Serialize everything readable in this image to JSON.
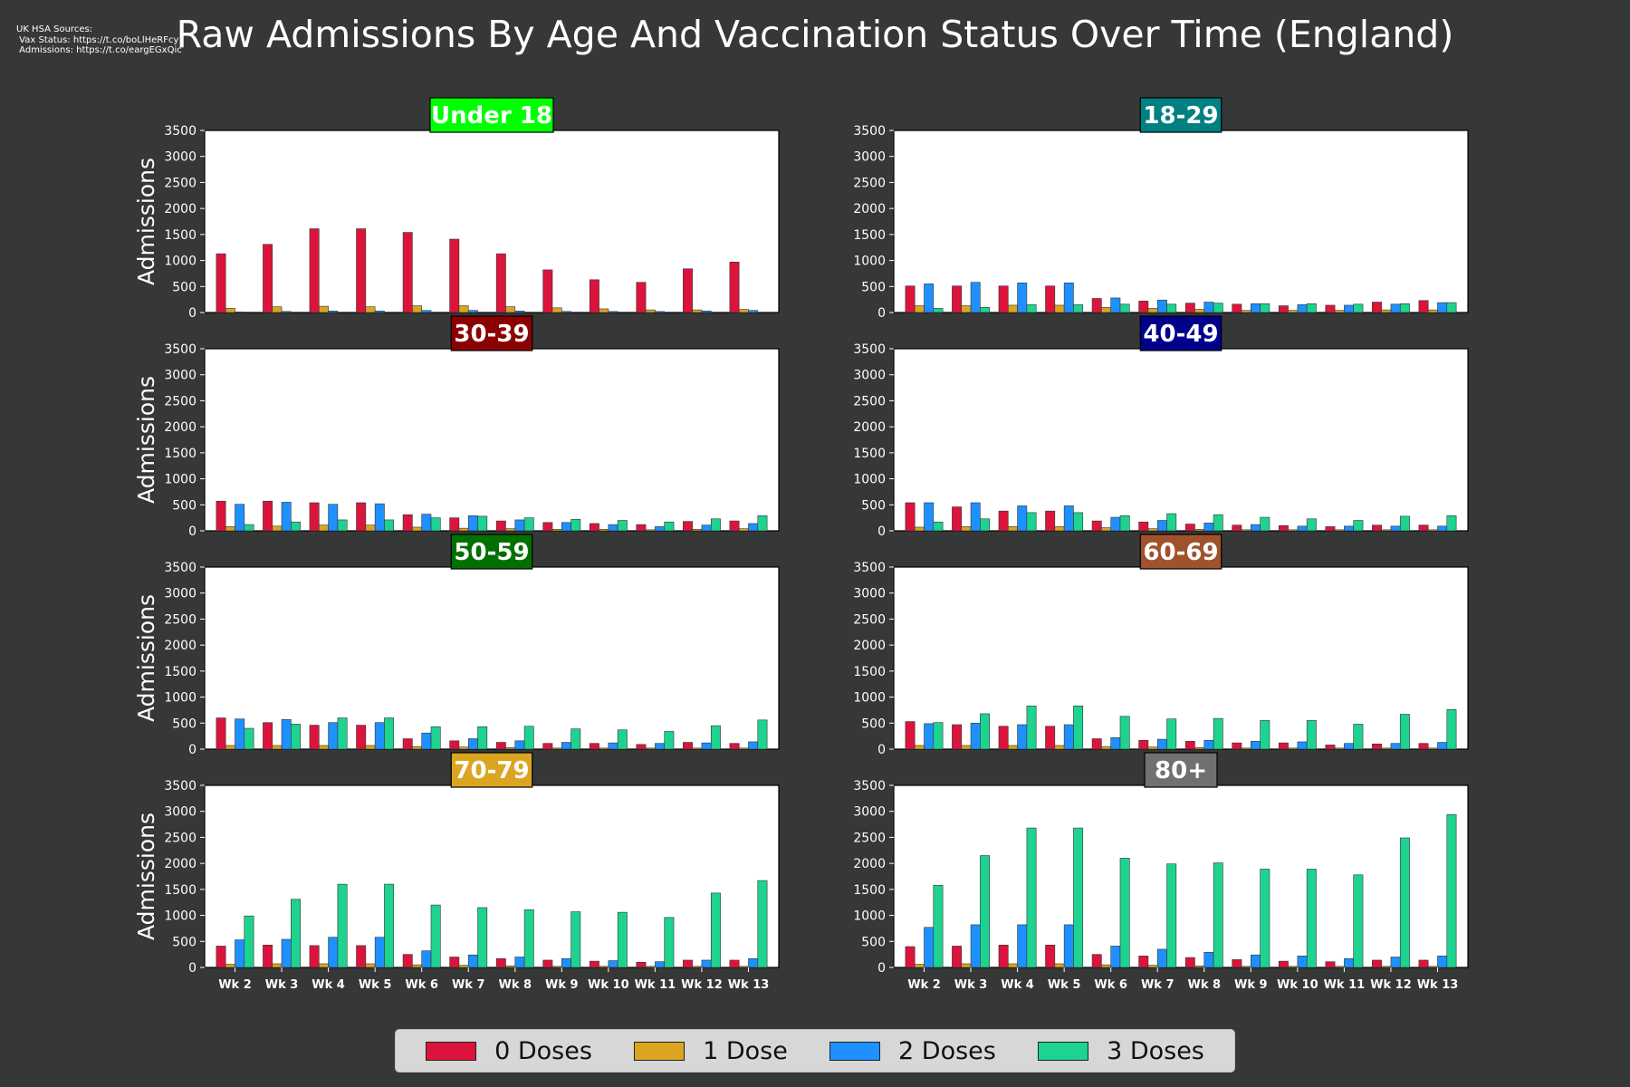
{
  "page": {
    "sources_text": "UK HSA Sources:\n Vax Status: https://t.co/boLlHeRFcy\n Admissions: https://t.co/eargEGxQic",
    "title": "Raw Admissions By Age And Vaccination Status Over Time (England)"
  },
  "colors": {
    "background": "#363737",
    "dose0": "#dc143c",
    "dose1": "#daa520",
    "dose2": "#1e90ff",
    "dose3": "#1ed38f"
  },
  "chart_data": {
    "type": "bar",
    "ylabel": "Admissions",
    "ylim": [
      0,
      3500
    ],
    "yticks": [
      0,
      500,
      1000,
      1500,
      2000,
      2500,
      3000,
      3500
    ],
    "categories": [
      "Wk 2",
      "Wk 3",
      "Wk 4",
      "Wk 5",
      "Wk 6",
      "Wk 7",
      "Wk 8",
      "Wk 9",
      "Wk 10",
      "Wk 11",
      "Wk 12",
      "Wk 13"
    ],
    "series_names": [
      "0 Doses",
      "1 Dose",
      "2 Doses",
      "3 Doses"
    ],
    "grid": false,
    "legend_placement": "bottom-center",
    "panels": [
      {
        "title": "Under 18",
        "title_bg": "#00ff00",
        "series": [
          {
            "name": "0 Doses",
            "values": [
              1130,
              1310,
              1610,
              1610,
              1540,
              1410,
              1130,
              820,
              630,
              580,
              840,
              970
            ]
          },
          {
            "name": "1 Dose",
            "values": [
              80,
              110,
              120,
              110,
              130,
              130,
              110,
              90,
              70,
              50,
              50,
              60
            ]
          },
          {
            "name": "2 Doses",
            "values": [
              10,
              20,
              30,
              30,
              40,
              40,
              30,
              20,
              20,
              20,
              30,
              40
            ]
          },
          {
            "name": "3 Doses",
            "values": [
              0,
              0,
              0,
              0,
              0,
              0,
              0,
              0,
              0,
              0,
              0,
              0
            ]
          }
        ]
      },
      {
        "title": "18-29",
        "title_bg": "#008080",
        "series": [
          {
            "name": "0 Doses",
            "values": [
              510,
              510,
              510,
              510,
              270,
              220,
              180,
              160,
              130,
              140,
              200,
              230
            ]
          },
          {
            "name": "1 Dose",
            "values": [
              130,
              130,
              140,
              140,
              100,
              80,
              60,
              40,
              40,
              40,
              50,
              50
            ]
          },
          {
            "name": "2 Doses",
            "values": [
              550,
              580,
              570,
              570,
              280,
              240,
              200,
              170,
              150,
              140,
              160,
              190
            ]
          },
          {
            "name": "3 Doses",
            "values": [
              80,
              100,
              150,
              150,
              160,
              160,
              180,
              170,
              170,
              160,
              170,
              190
            ]
          }
        ]
      },
      {
        "title": "30-39",
        "title_bg": "#8b0000",
        "series": [
          {
            "name": "0 Doses",
            "values": [
              570,
              570,
              540,
              540,
              310,
              250,
              190,
              160,
              140,
              120,
              180,
              190
            ]
          },
          {
            "name": "1 Dose",
            "values": [
              80,
              90,
              110,
              110,
              70,
              50,
              40,
              30,
              30,
              20,
              30,
              40
            ]
          },
          {
            "name": "2 Doses",
            "values": [
              510,
              550,
              510,
              520,
              320,
              290,
              210,
              160,
              120,
              80,
              110,
              140
            ]
          },
          {
            "name": "3 Doses",
            "values": [
              120,
              170,
              210,
              210,
              250,
              280,
              250,
              220,
              200,
              170,
              230,
              290
            ]
          }
        ]
      },
      {
        "title": "40-49",
        "title_bg": "#00008b",
        "series": [
          {
            "name": "0 Doses",
            "values": [
              540,
              460,
              380,
              380,
              190,
              170,
              130,
              110,
              100,
              80,
              110,
              110
            ]
          },
          {
            "name": "1 Dose",
            "values": [
              70,
              80,
              80,
              80,
              60,
              40,
              30,
              20,
              20,
              20,
              20,
              20
            ]
          },
          {
            "name": "2 Doses",
            "values": [
              540,
              540,
              480,
              480,
              260,
              200,
              150,
              120,
              90,
              90,
              90,
              90
            ]
          },
          {
            "name": "3 Doses",
            "values": [
              170,
              230,
              350,
              350,
              290,
              330,
              310,
              260,
              230,
              200,
              280,
              290
            ]
          }
        ]
      },
      {
        "title": "50-59",
        "title_bg": "#007000",
        "series": [
          {
            "name": "0 Doses",
            "values": [
              600,
              510,
              460,
              460,
              200,
              160,
              130,
              110,
              110,
              90,
              130,
              110
            ]
          },
          {
            "name": "1 Dose",
            "values": [
              70,
              70,
              70,
              70,
              50,
              40,
              30,
              20,
              20,
              20,
              20,
              20
            ]
          },
          {
            "name": "2 Doses",
            "values": [
              580,
              570,
              510,
              510,
              310,
              200,
              160,
              130,
              120,
              110,
              120,
              140
            ]
          },
          {
            "name": "3 Doses",
            "values": [
              400,
              480,
              600,
              600,
              430,
              430,
              440,
              390,
              370,
              340,
              450,
              560
            ]
          }
        ]
      },
      {
        "title": "60-69",
        "title_bg": "#a0522d",
        "series": [
          {
            "name": "0 Doses",
            "values": [
              530,
              470,
              440,
              440,
              200,
              170,
              150,
              120,
              120,
              80,
              100,
              110
            ]
          },
          {
            "name": "1 Dose",
            "values": [
              70,
              70,
              70,
              70,
              50,
              40,
              30,
              20,
              20,
              20,
              20,
              20
            ]
          },
          {
            "name": "2 Doses",
            "values": [
              490,
              500,
              470,
              470,
              220,
              190,
              170,
              150,
              140,
              110,
              110,
              130
            ]
          },
          {
            "name": "3 Doses",
            "values": [
              510,
              680,
              830,
              830,
              630,
              580,
              590,
              550,
              550,
              480,
              670,
              760
            ]
          }
        ]
      },
      {
        "title": "70-79",
        "title_bg": "#daa520",
        "series": [
          {
            "name": "0 Doses",
            "values": [
              410,
              430,
              420,
              420,
              250,
              200,
              170,
              140,
              120,
              100,
              140,
              140
            ]
          },
          {
            "name": "1 Dose",
            "values": [
              60,
              70,
              70,
              70,
              50,
              40,
              30,
              20,
              20,
              20,
              20,
              20
            ]
          },
          {
            "name": "2 Doses",
            "values": [
              530,
              540,
              580,
              580,
              320,
              240,
              200,
              170,
              130,
              110,
              140,
              170
            ]
          },
          {
            "name": "3 Doses",
            "values": [
              990,
              1310,
              1600,
              1600,
              1200,
              1150,
              1110,
              1070,
              1060,
              960,
              1430,
              1670
            ]
          }
        ]
      },
      {
        "title": "80+",
        "title_bg": "#707070",
        "series": [
          {
            "name": "0 Doses",
            "values": [
              400,
              410,
              430,
              430,
              250,
              220,
              190,
              150,
              120,
              110,
              140,
              140
            ]
          },
          {
            "name": "1 Dose",
            "values": [
              60,
              70,
              70,
              70,
              50,
              40,
              30,
              20,
              20,
              20,
              20,
              20
            ]
          },
          {
            "name": "2 Doses",
            "values": [
              770,
              820,
              820,
              820,
              410,
              350,
              290,
              240,
              220,
              170,
              200,
              220
            ]
          },
          {
            "name": "3 Doses",
            "values": [
              1580,
              2150,
              2680,
              2680,
              2100,
              1990,
              2010,
              1890,
              1890,
              1780,
              2490,
              2940
            ]
          }
        ]
      }
    ]
  },
  "legend": [
    {
      "label": "0 Doses",
      "color": "#dc143c"
    },
    {
      "label": "1 Dose",
      "color": "#daa520"
    },
    {
      "label": "2 Doses",
      "color": "#1e90ff"
    },
    {
      "label": "3 Doses",
      "color": "#1ed38f"
    }
  ]
}
